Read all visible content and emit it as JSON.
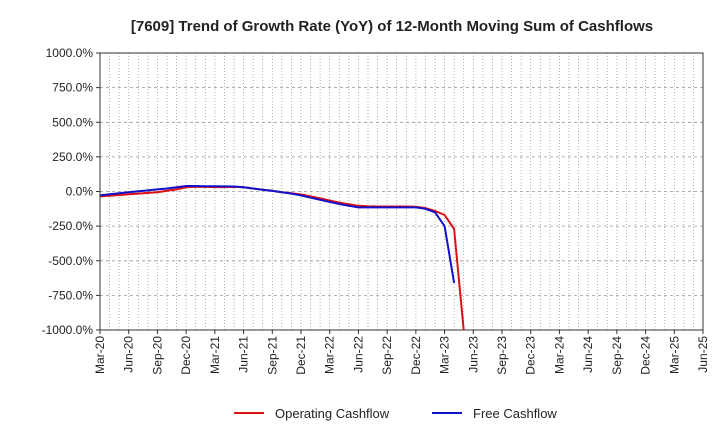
{
  "chart_data": {
    "type": "line",
    "title": "[7609]  Trend of Growth Rate (YoY) of 12-Month Moving Sum of Cashflows",
    "xlabel": "",
    "ylabel": "",
    "ylim": [
      -1000,
      1000
    ],
    "y_ticks": [
      1000,
      750,
      500,
      250,
      0,
      -250,
      -500,
      -750,
      -1000
    ],
    "y_tick_labels": [
      "1000.0%",
      "750.0%",
      "500.0%",
      "250.0%",
      "0.0%",
      "-250.0%",
      "-500.0%",
      "-750.0%",
      "-1000.0%"
    ],
    "x_tick_labels": [
      "Mar-20",
      "Jun-20",
      "Sep-20",
      "Dec-20",
      "Mar-21",
      "Jun-21",
      "Sep-21",
      "Dec-21",
      "Mar-22",
      "Jun-22",
      "Sep-22",
      "Dec-22",
      "Mar-23",
      "Jun-23",
      "Sep-23",
      "Dec-23",
      "Mar-24",
      "Jun-24",
      "Sep-24",
      "Dec-24",
      "Mar-25",
      "Jun-25"
    ],
    "x_months": [
      "2020-03",
      "2020-04",
      "2020-05",
      "2020-06",
      "2020-07",
      "2020-08",
      "2020-09",
      "2020-10",
      "2020-11",
      "2020-12",
      "2021-01",
      "2021-02",
      "2021-03",
      "2021-04",
      "2021-05",
      "2021-06",
      "2021-07",
      "2021-08",
      "2021-09",
      "2021-10",
      "2021-11",
      "2021-12",
      "2022-01",
      "2022-02",
      "2022-03",
      "2022-04",
      "2022-05",
      "2022-06",
      "2022-07",
      "2022-08",
      "2022-09",
      "2022-10",
      "2022-11",
      "2022-12",
      "2023-01",
      "2023-02",
      "2023-03",
      "2023-04",
      "2023-05"
    ],
    "grid": true,
    "legend_position": "bottom",
    "series": [
      {
        "name": "Operating Cashflow",
        "color": "#dd1111",
        "values": [
          -35,
          -30,
          -25,
          -20,
          -15,
          -10,
          -5,
          5,
          15,
          30,
          35,
          33,
          32,
          32,
          33,
          30,
          22,
          12,
          5,
          -5,
          -12,
          -22,
          -35,
          -50,
          -65,
          -80,
          -92,
          -103,
          -107,
          -108,
          -108,
          -108,
          -108,
          -110,
          -120,
          -140,
          -170,
          -270,
          -1000
        ]
      },
      {
        "name": "Free Cashflow",
        "color": "#1111cc",
        "values": [
          -28,
          -20,
          -12,
          -5,
          2,
          8,
          15,
          22,
          30,
          40,
          40,
          38,
          38,
          37,
          36,
          30,
          22,
          12,
          4,
          -5,
          -15,
          -28,
          -45,
          -60,
          -75,
          -90,
          -103,
          -115,
          -115,
          -115,
          -115,
          -115,
          -115,
          -115,
          -125,
          -150,
          -250,
          -660,
          null
        ]
      }
    ]
  }
}
